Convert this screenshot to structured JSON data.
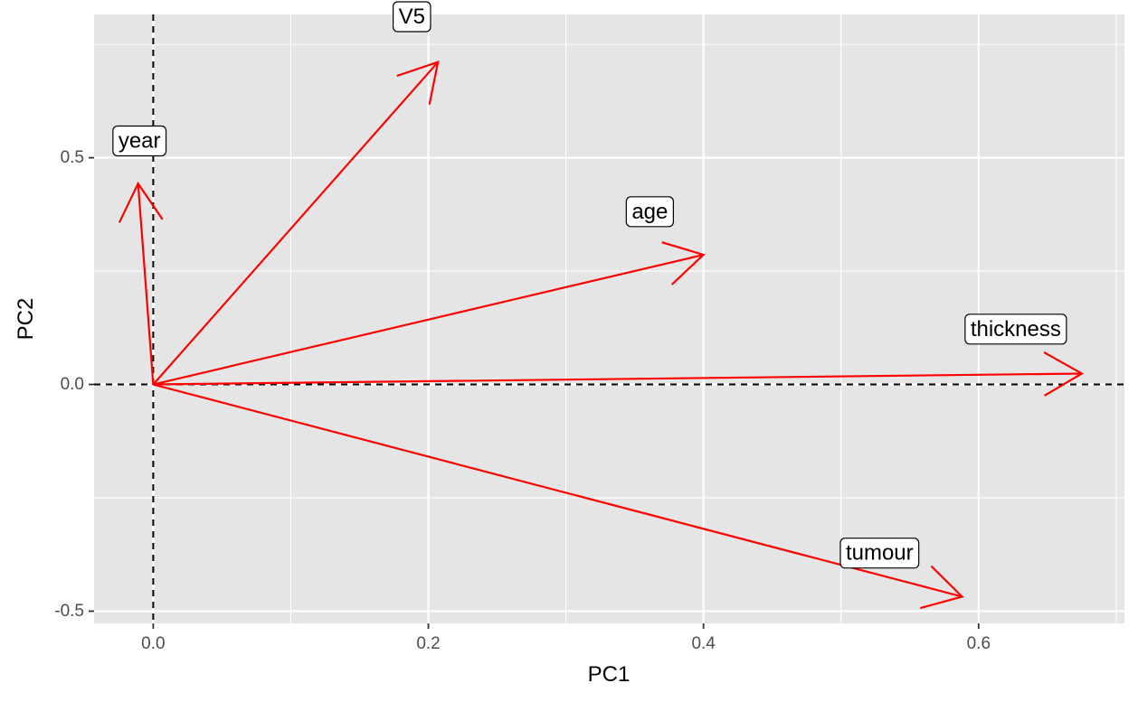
{
  "chart_data": {
    "type": "biplot-arrows",
    "xlabel": "PC1",
    "ylabel": "PC2",
    "xlim": [
      -0.043,
      0.706
    ],
    "ylim": [
      -0.527,
      0.816
    ],
    "x_ticks": [
      0.0,
      0.2,
      0.4,
      0.6
    ],
    "x_tick_labels": [
      "0.0",
      "0.2",
      "0.4",
      "0.6"
    ],
    "y_ticks": [
      -0.5,
      0.0,
      0.5
    ],
    "y_tick_labels": [
      "-0.5",
      "0.0",
      "0.5"
    ],
    "grid": true,
    "reference_lines": {
      "x": 0,
      "y": 0,
      "style": "dashed"
    },
    "arrow_color": "#ff0000",
    "panel_background": "#e5e5e5",
    "vectors": [
      {
        "name": "V5",
        "x": 0.207,
        "y": 0.711,
        "label_x": 0.188,
        "label_y": 0.811
      },
      {
        "name": "year",
        "x": -0.011,
        "y": 0.443,
        "label_x": -0.01,
        "label_y": 0.537
      },
      {
        "name": "age",
        "x": 0.4,
        "y": 0.286,
        "label_x": 0.361,
        "label_y": 0.381
      },
      {
        "name": "thickness",
        "x": 0.675,
        "y": 0.024,
        "label_x": 0.627,
        "label_y": 0.122
      },
      {
        "name": "tumour",
        "x": 0.588,
        "y": -0.468,
        "label_x": 0.528,
        "label_y": -0.372
      }
    ]
  }
}
